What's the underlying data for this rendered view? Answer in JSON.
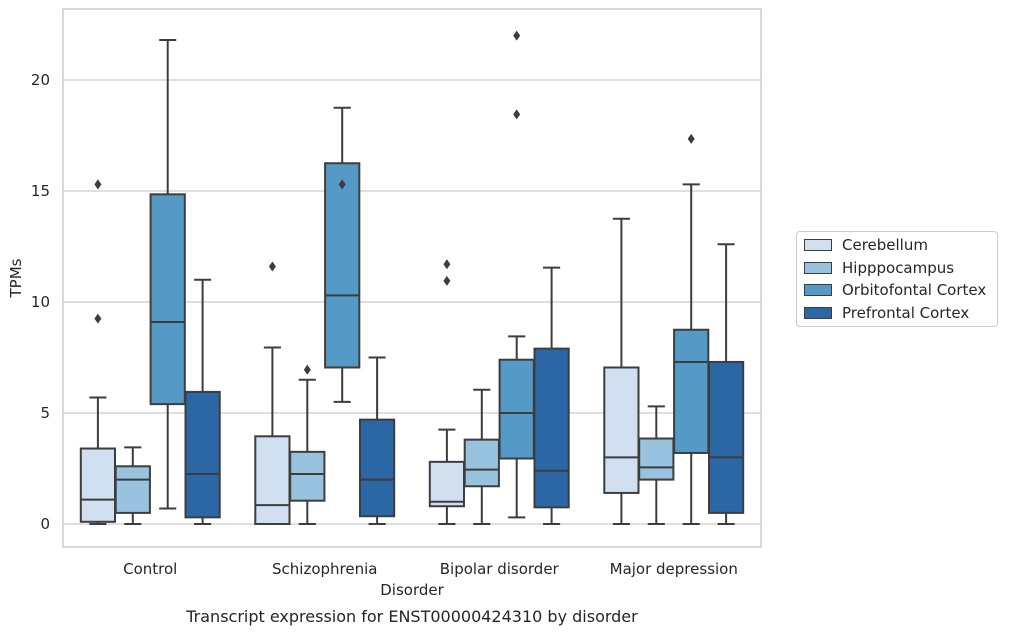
{
  "chart_data": {
    "type": "box",
    "title": "Transcript expression for ENST00000424310 by disorder",
    "xlabel": "Disorder",
    "ylabel": "TPMs",
    "categories": [
      "Control",
      "Schizophrenia",
      "Bipolar disorder",
      "Major depression"
    ],
    "ylim": [
      -1,
      23.2
    ],
    "yticks": [
      0,
      5,
      10,
      15,
      20
    ],
    "grid": true,
    "legend_position": "right",
    "series": [
      {
        "name": "Cerebellum",
        "color": "#d0e0f0",
        "boxes": [
          {
            "whislo": 0,
            "q1": 0.1,
            "med": 1.1,
            "q3": 3.4,
            "whishi": 5.7,
            "fliers": [
              9.25,
              15.3
            ]
          },
          {
            "whislo": 0,
            "q1": 0,
            "med": 0.85,
            "q3": 3.95,
            "whishi": 7.95,
            "fliers": [
              11.6
            ]
          },
          {
            "whislo": 0,
            "q1": 0.8,
            "med": 1.0,
            "q3": 2.8,
            "whishi": 4.25,
            "fliers": [
              10.95,
              11.7
            ]
          },
          {
            "whislo": 0,
            "q1": 1.4,
            "med": 3.0,
            "q3": 7.05,
            "whishi": 13.75,
            "fliers": []
          }
        ]
      },
      {
        "name": "Hipppocampus",
        "color": "#99c2df",
        "boxes": [
          {
            "whislo": 0,
            "q1": 0.5,
            "med": 2.0,
            "q3": 2.6,
            "whishi": 3.45,
            "fliers": []
          },
          {
            "whislo": 0,
            "q1": 1.05,
            "med": 2.25,
            "q3": 3.25,
            "whishi": 6.5,
            "fliers": [
              6.95
            ]
          },
          {
            "whislo": 0,
            "q1": 1.7,
            "med": 2.45,
            "q3": 3.8,
            "whishi": 6.05,
            "fliers": []
          },
          {
            "whislo": 0,
            "q1": 2.0,
            "med": 2.55,
            "q3": 3.85,
            "whishi": 5.3,
            "fliers": []
          }
        ]
      },
      {
        "name": "Orbitofontal Cortex",
        "color": "#5599c6",
        "boxes": [
          {
            "whislo": 0.7,
            "q1": 5.4,
            "med": 9.1,
            "q3": 14.85,
            "whishi": 21.8,
            "fliers": []
          },
          {
            "whislo": 5.5,
            "q1": 7.05,
            "med": 10.3,
            "q3": 16.25,
            "whishi": 18.75,
            "fliers": [
              15.3
            ]
          },
          {
            "whislo": 0.3,
            "q1": 2.95,
            "med": 5.0,
            "q3": 7.4,
            "whishi": 8.45,
            "fliers": [
              18.45,
              22.0
            ]
          },
          {
            "whislo": 0,
            "q1": 3.2,
            "med": 7.3,
            "q3": 8.75,
            "whishi": 15.3,
            "fliers": [
              17.35
            ]
          }
        ]
      },
      {
        "name": "Prefrontal Cortex",
        "color": "#2b67a5",
        "boxes": [
          {
            "whislo": 0,
            "q1": 0.3,
            "med": 2.25,
            "q3": 5.95,
            "whishi": 11.0,
            "fliers": []
          },
          {
            "whislo": 0,
            "q1": 0.35,
            "med": 2.0,
            "q3": 4.7,
            "whishi": 7.5,
            "fliers": []
          },
          {
            "whislo": 0,
            "q1": 0.75,
            "med": 2.4,
            "q3": 7.9,
            "whishi": 11.55,
            "fliers": []
          },
          {
            "whislo": 0,
            "q1": 0.5,
            "med": 3.0,
            "q3": 7.3,
            "whishi": 12.6,
            "fliers": []
          }
        ]
      }
    ]
  }
}
